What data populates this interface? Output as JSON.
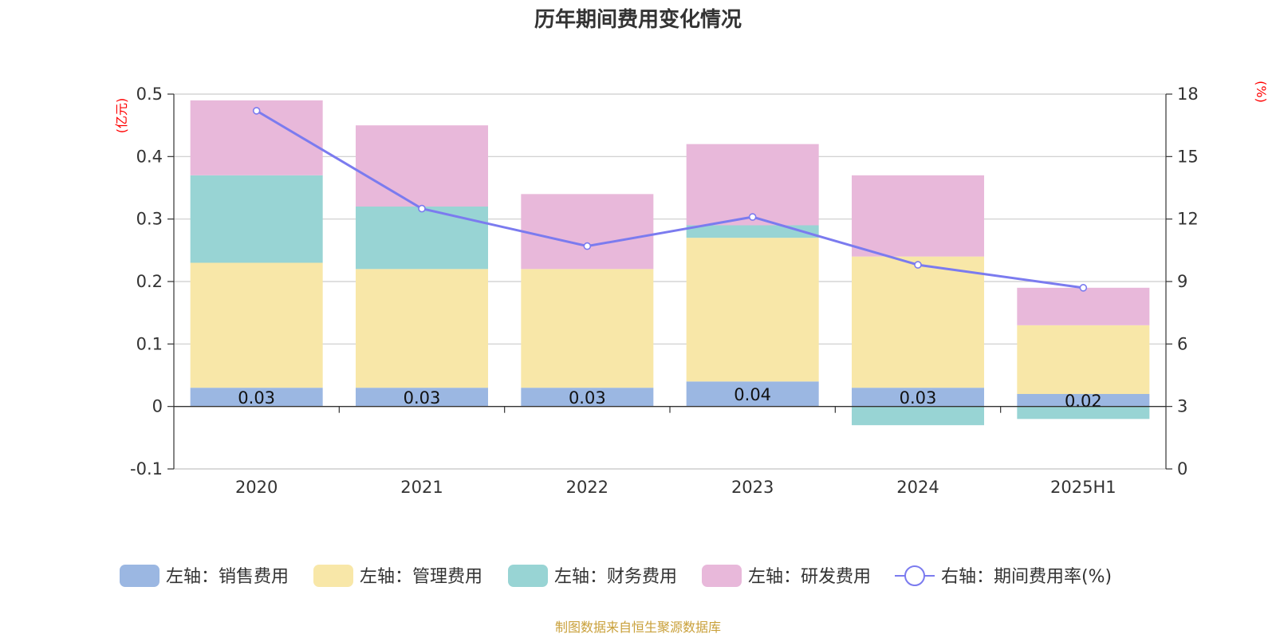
{
  "chart_data": {
    "type": "bar",
    "title": "历年期间费用变化情况",
    "categories": [
      "2020",
      "2021",
      "2022",
      "2023",
      "2024",
      "2025H1"
    ],
    "left_axis": {
      "unit": "(亿元)",
      "ylim": [
        -0.1,
        0.5
      ],
      "ticks": [
        "-0.1",
        "0",
        "0.1",
        "0.2",
        "0.3",
        "0.4",
        "0.5"
      ]
    },
    "right_axis": {
      "unit": "(%)",
      "ylim": [
        0,
        18
      ],
      "ticks": [
        "0",
        "3",
        "6",
        "9",
        "12",
        "15",
        "18"
      ]
    },
    "series": [
      {
        "name": "左轴：销售费用",
        "type": "bar",
        "color": "#9bb7e2",
        "values": [
          0.03,
          0.03,
          0.03,
          0.04,
          0.03,
          0.02
        ],
        "labels": [
          "0.03",
          "0.03",
          "0.03",
          "0.04",
          "0.03",
          "0.02"
        ]
      },
      {
        "name": "左轴：管理费用",
        "type": "bar",
        "color": "#f8e7a8",
        "values": [
          0.2,
          0.19,
          0.19,
          0.23,
          0.21,
          0.11
        ]
      },
      {
        "name": "左轴：财务费用",
        "type": "bar",
        "color": "#98d4d4",
        "values": [
          0.14,
          0.1,
          0.0,
          0.02,
          -0.03,
          -0.02
        ]
      },
      {
        "name": "左轴：研发费用",
        "type": "bar",
        "color": "#e8b8da",
        "values": [
          0.12,
          0.13,
          0.12,
          0.13,
          0.13,
          0.06
        ]
      },
      {
        "name": "右轴：期间费用率(%)",
        "type": "line",
        "axis": "right",
        "color": "#7b7bef",
        "values": [
          17.2,
          12.5,
          10.7,
          12.1,
          9.8,
          8.7
        ]
      }
    ],
    "grid": true,
    "legend_position": "bottom"
  },
  "source": "制图数据来自恒生聚源数据库"
}
